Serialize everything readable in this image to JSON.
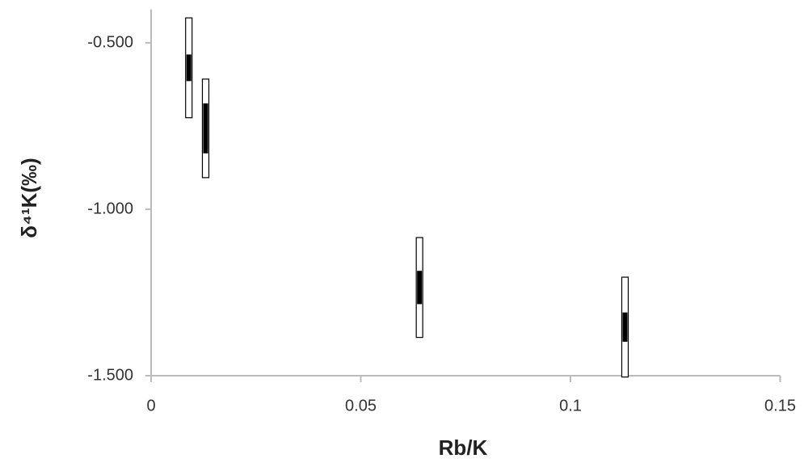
{
  "chart_data": {
    "type": "scatter",
    "x_label": "Rb/K",
    "y_label": "δ⁴¹K(‰)",
    "x": [
      0.009,
      0.013,
      0.064,
      0.113
    ],
    "values": [
      -0.575,
      -0.757,
      -1.235,
      -1.354
    ],
    "errors_outer": [
      0.15,
      0.148,
      0.15,
      0.15
    ],
    "errors_inner": [
      0.04,
      0.075,
      0.05,
      0.044
    ],
    "outer_color": "#ffffff",
    "inner_color": "#000000",
    "xlim": [
      0,
      0.15
    ],
    "xticks": [
      0,
      0.05,
      0.1,
      0.15
    ],
    "ylim": [
      -1.5,
      -0.4
    ],
    "yticks": [
      {
        "value": -0.5,
        "label": "-0.500"
      },
      {
        "value": -1.0,
        "label": "-1.000"
      },
      {
        "value": -1.5,
        "label": "-1.500"
      }
    ],
    "grid": false
  }
}
